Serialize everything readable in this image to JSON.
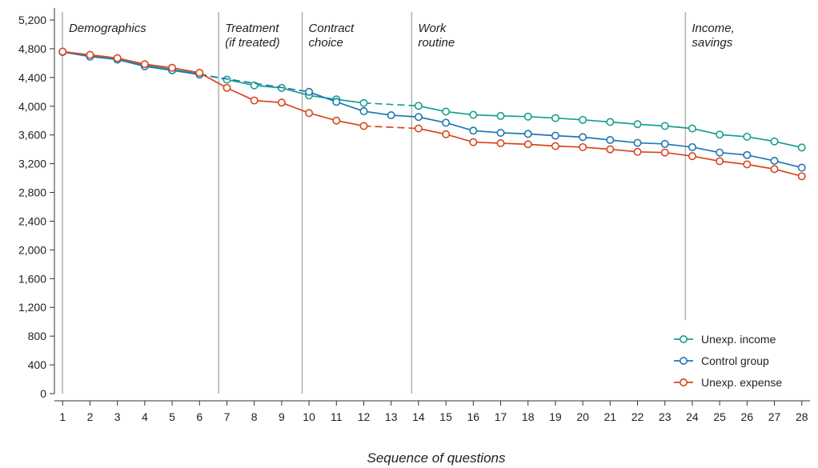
{
  "chart_data": {
    "type": "line",
    "xlabel": "Sequence of questions",
    "ylabel": "",
    "x": [
      1,
      2,
      3,
      4,
      5,
      6,
      7,
      8,
      9,
      10,
      11,
      12,
      13,
      14,
      15,
      16,
      17,
      18,
      19,
      20,
      21,
      22,
      23,
      24,
      25,
      26,
      27,
      28
    ],
    "ylim": [
      0,
      5200
    ],
    "yticks": [
      "0",
      "400",
      "800",
      "1,200",
      "1,600",
      "2,000",
      "2,400",
      "2,800",
      "3,200",
      "3,600",
      "4,000",
      "4,400",
      "4,800",
      "5,200"
    ],
    "xticks": [
      "1",
      "2",
      "3",
      "4",
      "5",
      "6",
      "7",
      "8",
      "9",
      "10",
      "11",
      "12",
      "13",
      "14",
      "15",
      "16",
      "17",
      "18",
      "19",
      "20",
      "21",
      "22",
      "23",
      "24",
      "25",
      "26",
      "27",
      "28"
    ],
    "legend_position": "bottom-right",
    "sections": [
      {
        "text": "Demographics",
        "line_x": 0.7
      },
      {
        "text": "Treatment (if treated)",
        "line_x": 6.7
      },
      {
        "text": "Contract choice",
        "line_x": 9.75
      },
      {
        "text": "Work routine",
        "line_x": 13.75
      },
      {
        "text": "Income, savings",
        "line_x": 23.75
      }
    ],
    "series": [
      {
        "name": "Unexp. income",
        "color": "#17a08c",
        "x": [
          1,
          2,
          3,
          4,
          5,
          6,
          7,
          8,
          9,
          10,
          11,
          12,
          14,
          15,
          16,
          17,
          18,
          19,
          20,
          21,
          22,
          23,
          24,
          25,
          26,
          27,
          28
        ],
        "values": [
          4755,
          4700,
          4650,
          4570,
          4510,
          4450,
          4370,
          4290,
          4255,
          4150,
          4095,
          4045,
          4005,
          3925,
          3880,
          3865,
          3855,
          3835,
          3810,
          3780,
          3750,
          3725,
          3690,
          3605,
          3575,
          3510,
          3425
        ],
        "dashed_segments": [
          [
            6,
            7
          ],
          [
            12,
            14
          ]
        ]
      },
      {
        "name": "Control group",
        "color": "#1f77b4",
        "x": [
          1,
          2,
          3,
          4,
          5,
          6,
          7,
          8,
          9,
          10,
          11,
          12,
          13,
          14,
          15,
          16,
          17,
          18,
          19,
          20,
          21,
          22,
          23,
          24,
          25,
          26,
          27,
          28
        ],
        "values": [
          4755,
          4690,
          4650,
          4555,
          4500,
          4440,
          null,
          null,
          null,
          4200,
          4060,
          3930,
          3875,
          3850,
          3770,
          3660,
          3630,
          3615,
          3590,
          3570,
          3530,
          3490,
          3475,
          3430,
          3355,
          3320,
          3240,
          3145
        ],
        "dashed_segments": [
          [
            6,
            10
          ]
        ]
      },
      {
        "name": "Unexp. expense",
        "color": "#d9461e",
        "x": [
          1,
          2,
          3,
          4,
          5,
          6,
          7,
          8,
          9,
          10,
          11,
          12,
          14,
          15,
          16,
          17,
          18,
          19,
          20,
          21,
          22,
          23,
          24,
          25,
          26,
          27,
          28
        ],
        "values": [
          4760,
          4715,
          4670,
          4585,
          4535,
          4465,
          4255,
          4080,
          4050,
          3905,
          3800,
          3725,
          3690,
          3610,
          3500,
          3485,
          3470,
          3445,
          3430,
          3400,
          3365,
          3355,
          3305,
          3235,
          3190,
          3125,
          3025
        ],
        "dashed_segments": [
          [
            12,
            14
          ]
        ]
      }
    ]
  }
}
